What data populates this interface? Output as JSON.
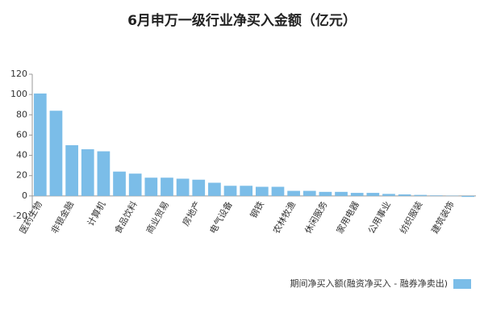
{
  "chart_data": {
    "type": "bar",
    "title": "6月申万一级行业净买入金额（亿元）",
    "categories": [
      "医药生物",
      null,
      "非银金融",
      null,
      "计算机",
      null,
      "食品饮料",
      null,
      "商业贸易",
      null,
      "房地产",
      null,
      "电气设备",
      null,
      "钢铁",
      null,
      "农林牧渔",
      null,
      "休闲服务",
      null,
      "家用电器",
      null,
      "公用事业",
      null,
      "纺织服装",
      null,
      "建筑装饰",
      null
    ],
    "values": [
      101,
      84,
      50,
      46,
      44,
      24,
      22,
      18,
      18,
      17,
      16,
      13,
      10,
      10,
      9,
      9,
      5,
      5,
      4,
      4,
      3,
      3,
      2,
      1.5,
      1,
      0.5,
      0.3,
      -1
    ],
    "color": "#7bbde8",
    "legend": "期间净买入额(融资净买入 - 融券净卖出)",
    "ylim": [
      -20,
      120
    ],
    "yticks": [
      -20,
      0,
      20,
      40,
      60,
      80,
      100,
      120
    ],
    "grid": false
  }
}
